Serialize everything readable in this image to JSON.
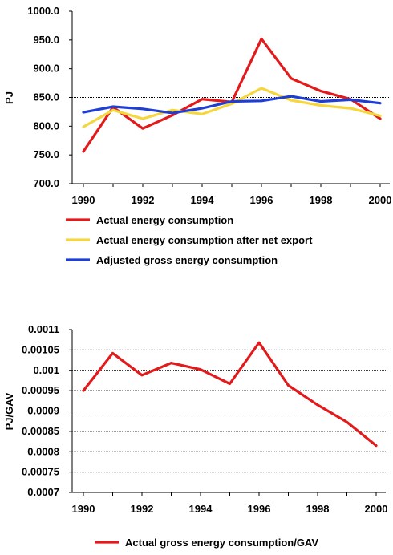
{
  "chart_data": [
    {
      "type": "line",
      "ylabel": "PJ",
      "xlabel": "",
      "ylim": [
        700,
        1000
      ],
      "yticks": [
        "1000.0",
        "950.0",
        "900.0",
        "850.0",
        "800.0",
        "750.0",
        "700.0"
      ],
      "xticks": [
        "1990",
        "1992",
        "1994",
        "1996",
        "1998",
        "2000"
      ],
      "x": [
        1990,
        1991,
        1992,
        1993,
        1994,
        1995,
        1996,
        1997,
        1998,
        1999,
        2000
      ],
      "gridlines": [
        850
      ],
      "legend_position": "bottom",
      "series": [
        {
          "name": "Actual energy consumption",
          "color": "#e31a1c",
          "values": [
            756,
            833,
            796,
            819,
            847,
            842,
            952,
            883,
            861,
            847,
            813
          ]
        },
        {
          "name": "Actual energy consumption after net export",
          "color": "#f5d63d",
          "values": [
            799,
            828,
            813,
            828,
            821,
            839,
            866,
            845,
            836,
            831,
            818
          ]
        },
        {
          "name": "Adjusted gross energy consumption",
          "color": "#1f3fd4",
          "values": [
            824,
            834,
            830,
            823,
            831,
            843,
            844,
            852,
            843,
            846,
            840
          ]
        }
      ]
    },
    {
      "type": "line",
      "ylabel": "PJ/GAV",
      "xlabel": "",
      "ylim": [
        0.0007,
        0.0011
      ],
      "yticks": [
        "0.0011",
        "0.00105",
        "0.001",
        "0.00095",
        "0.0009",
        "0.00085",
        "0.0008",
        "0.00075",
        "0.0007"
      ],
      "xticks": [
        "1990",
        "1992",
        "1994",
        "1996",
        "1998",
        "2000"
      ],
      "x": [
        1990,
        1991,
        1992,
        1993,
        1994,
        1995,
        1996,
        1997,
        1998,
        1999,
        2000
      ],
      "gridlines": [
        0.00105,
        0.001,
        0.00095,
        0.0009,
        0.00085,
        0.0008,
        0.00075
      ],
      "legend_position": "bottom",
      "series": [
        {
          "name": "Actual gross energy consumption/GAV",
          "color": "#e31a1c",
          "values": [
            0.00095,
            0.001042,
            0.000988,
            0.001018,
            0.001002,
            0.000967,
            0.001068,
            0.000963,
            0.000915,
            0.000873,
            0.000815
          ]
        }
      ]
    }
  ]
}
